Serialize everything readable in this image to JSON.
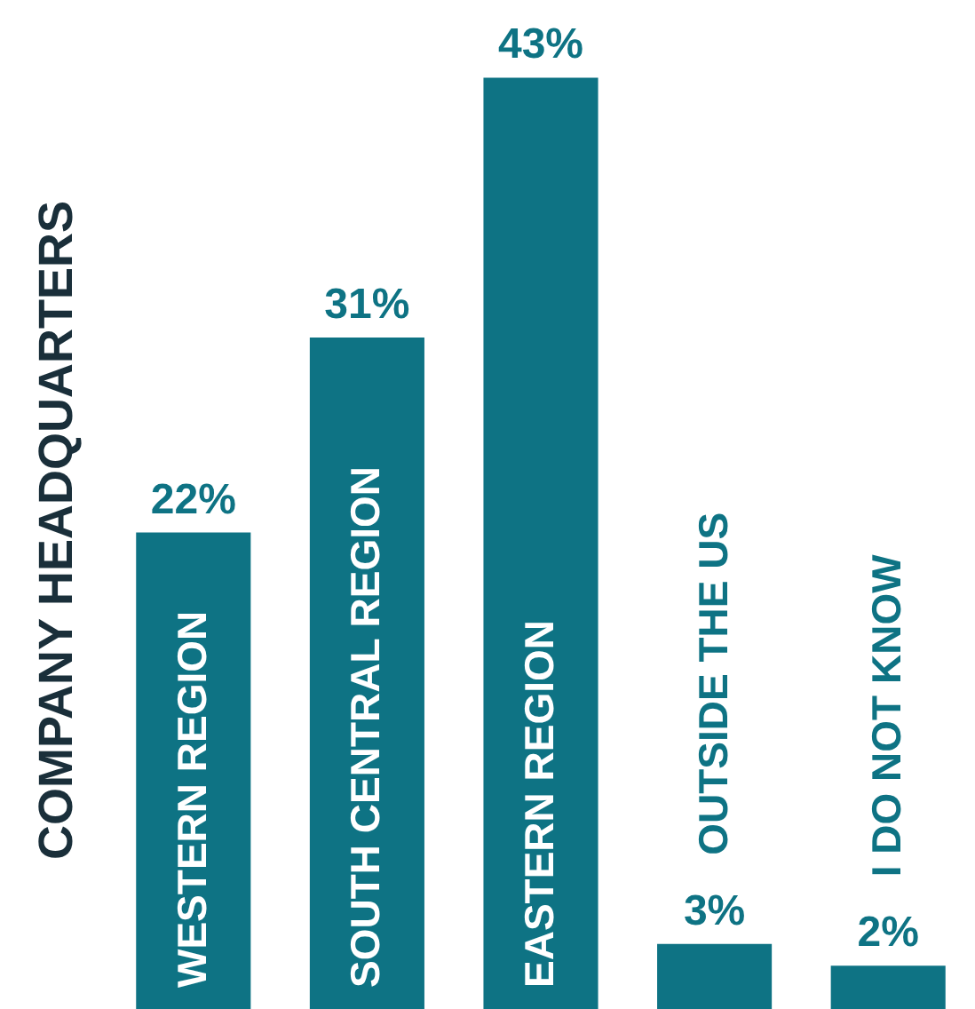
{
  "chart_data": {
    "type": "bar",
    "ylabel": "COMPANY HEADQUARTERS",
    "categories": [
      "WESTERN REGION",
      "SOUTH CENTRAL REGION",
      "EASTERN REGION",
      "OUTSIDE THE US",
      "I DO NOT KNOW"
    ],
    "values": [
      22,
      31,
      43,
      3,
      2
    ],
    "value_labels": [
      "22%",
      "31%",
      "43%",
      "3%",
      "2%"
    ],
    "color": "#0e7384"
  }
}
